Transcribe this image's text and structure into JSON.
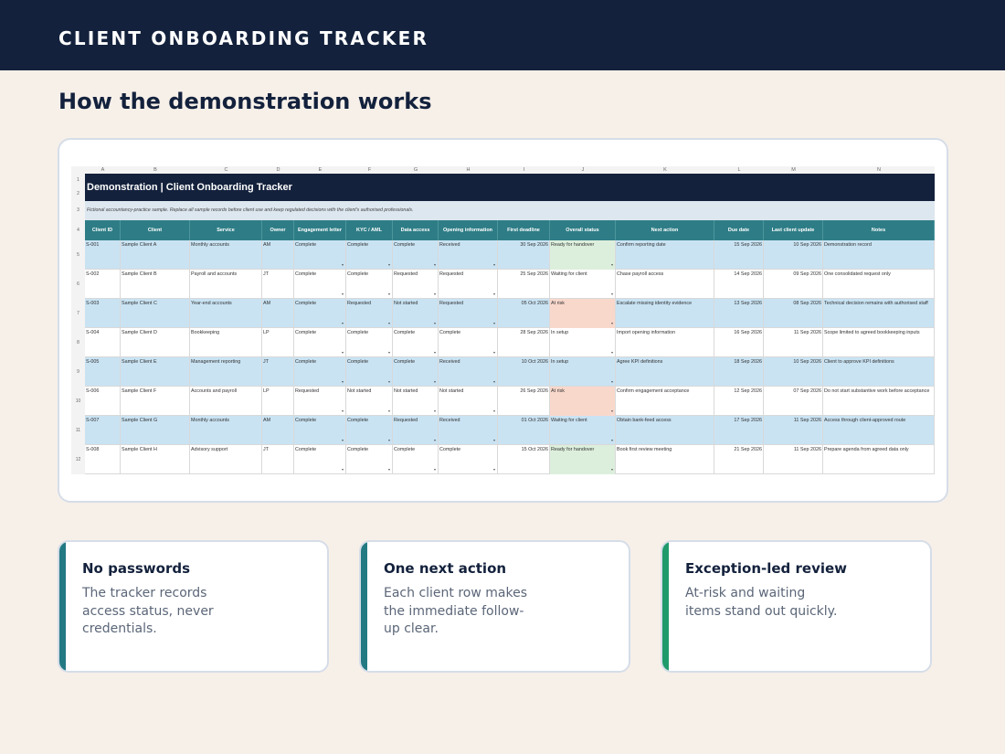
{
  "header": {
    "title": "CLIENT ONBOARDING TRACKER"
  },
  "page": {
    "heading": "How the demonstration works"
  },
  "sheet": {
    "column_letters": [
      "A",
      "B",
      "C",
      "D",
      "E",
      "F",
      "G",
      "H",
      "I",
      "J",
      "K",
      "L",
      "M",
      "N"
    ],
    "row_numbers": [
      "1",
      "2",
      "3",
      "4",
      "5",
      "6",
      "7",
      "8",
      "9",
      "10",
      "11",
      "12"
    ],
    "banner": "Demonstration  |  Client Onboarding Tracker",
    "note": "Fictional accountancy-practice sample. Replace all sample records before client use and keep regulated decisions with the client's authorised professionals.",
    "headers": [
      "Client ID",
      "Client",
      "Service",
      "Owner",
      "Engagement letter",
      "KYC / AML",
      "Data access",
      "Opening information",
      "First deadline",
      "Overall status",
      "Next action",
      "Due date",
      "Last client update",
      "Notes"
    ],
    "rows": [
      {
        "cells": [
          "S-001",
          "Sample Client A",
          "Monthly accounts",
          "AM",
          "Complete",
          "Complete",
          "Complete",
          "Received",
          "30 Sep 2026",
          "Ready for handover",
          "Confirm reporting date",
          "15 Sep 2026",
          "10 Sep 2026",
          "Demonstration record"
        ],
        "status": "green"
      },
      {
        "cells": [
          "S-002",
          "Sample Client B",
          "Payroll and accounts",
          "JT",
          "Complete",
          "Complete",
          "Requested",
          "Requested",
          "25 Sep 2026",
          "Waiting for client",
          "Chase payroll access",
          "14 Sep 2026",
          "09 Sep 2026",
          "One consolidated request only"
        ],
        "status": "none"
      },
      {
        "cells": [
          "S-003",
          "Sample Client C",
          "Year-end accounts",
          "AM",
          "Complete",
          "Requested",
          "Not started",
          "Requested",
          "05 Oct 2026",
          "At risk",
          "Escalate missing identity evidence",
          "13 Sep 2026",
          "08 Sep 2026",
          "Technical decision remains with authorised staff"
        ],
        "status": "red"
      },
      {
        "cells": [
          "S-004",
          "Sample Client D",
          "Bookkeeping",
          "LP",
          "Complete",
          "Complete",
          "Complete",
          "Complete",
          "28 Sep 2026",
          "In setup",
          "Import opening information",
          "16 Sep 2026",
          "11 Sep 2026",
          "Scope limited to agreed bookkeeping inputs"
        ],
        "status": "none"
      },
      {
        "cells": [
          "S-005",
          "Sample Client E",
          "Management reporting",
          "JT",
          "Complete",
          "Complete",
          "Complete",
          "Received",
          "10 Oct 2026",
          "In setup",
          "Agree KPI definitions",
          "18 Sep 2026",
          "10 Sep 2026",
          "Client to approve KPI definitions"
        ],
        "status": "none"
      },
      {
        "cells": [
          "S-006",
          "Sample Client F",
          "Accounts and payroll",
          "LP",
          "Requested",
          "Not started",
          "Not started",
          "Not started",
          "26 Sep 2026",
          "At risk",
          "Confirm engagement acceptance",
          "12 Sep 2026",
          "07 Sep 2026",
          "Do not start substantive work before acceptance"
        ],
        "status": "red"
      },
      {
        "cells": [
          "S-007",
          "Sample Client G",
          "Monthly accounts",
          "AM",
          "Complete",
          "Complete",
          "Requested",
          "Received",
          "01 Oct 2026",
          "Waiting for client",
          "Obtain bank-feed access",
          "17 Sep 2026",
          "11 Sep 2026",
          "Access through client-approved route"
        ],
        "status": "none"
      },
      {
        "cells": [
          "S-008",
          "Sample Client H",
          "Advisory support",
          "JT",
          "Complete",
          "Complete",
          "Complete",
          "Complete",
          "15 Oct 2026",
          "Ready for handover",
          "Book first review meeting",
          "21 Sep 2026",
          "11 Sep 2026",
          "Prepare agenda from agreed data only"
        ],
        "status": "green"
      }
    ]
  },
  "cards": [
    {
      "title": "No passwords",
      "body": "The tracker records access status, never credentials.",
      "accent": "#237a83"
    },
    {
      "title": "One next action",
      "body": "Each client row makes the immediate follow-up clear.",
      "accent": "#237a83"
    },
    {
      "title": "Exception-led review",
      "body": "At-risk and waiting items stand out quickly.",
      "accent": "#1f9a6a"
    }
  ],
  "colors": {
    "navy": "#13213c",
    "teal_header": "#2e7d86",
    "alt_row": "#c9e3f3",
    "status_green": "#dcefdc",
    "status_red": "#f9d8cc"
  }
}
